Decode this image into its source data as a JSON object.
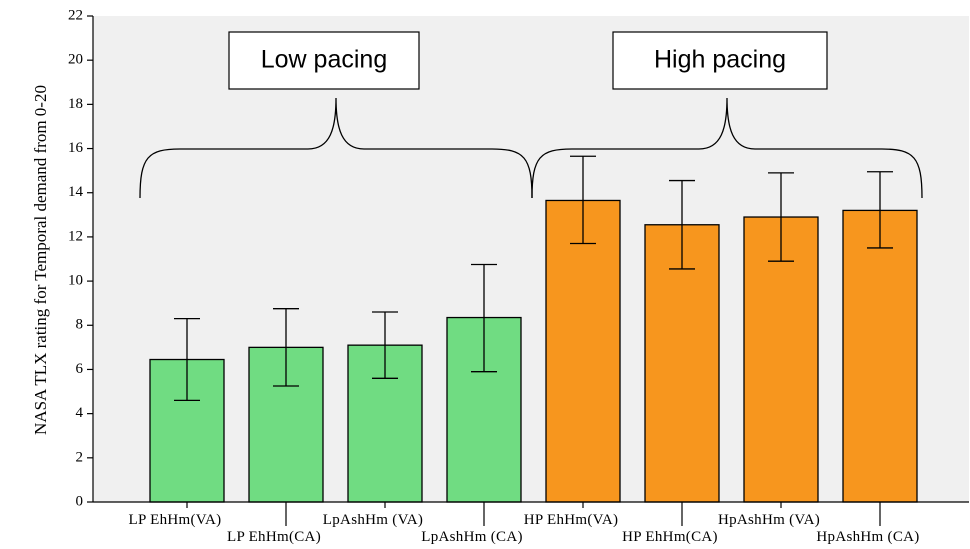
{
  "chart_data": {
    "type": "bar",
    "title": "",
    "xlabel": "",
    "ylabel": "NASA TLX rating for Temporal demand from 0-20",
    "ylim": [
      0,
      22
    ],
    "yticks": [
      0,
      2,
      4,
      6,
      8,
      10,
      12,
      14,
      16,
      18,
      20,
      22
    ],
    "grid": false,
    "legend": "none",
    "categories": [
      "LP EhHm(VA)",
      "LP EhHm(CA)",
      "LpAshHm (VA)",
      "LpAshHm (CA)",
      "HP EhHm(VA)",
      "HP EhHm(CA)",
      "HpAshHm (VA)",
      "HpAshHm (CA)"
    ],
    "values": [
      6.45,
      7.0,
      7.1,
      8.35,
      13.65,
      12.55,
      12.9,
      13.2
    ],
    "error_low": [
      4.6,
      5.25,
      5.6,
      5.9,
      11.7,
      10.55,
      10.9,
      11.5
    ],
    "error_high": [
      8.3,
      8.75,
      8.6,
      10.75,
      15.65,
      14.55,
      14.9,
      14.95
    ],
    "bar_colors": [
      "#70dc82",
      "#70dc82",
      "#70dc82",
      "#70dc82",
      "#f7961e",
      "#f7961e",
      "#f7961e",
      "#f7961e"
    ],
    "plot_background": "#f0f0f0",
    "groups": [
      {
        "label": "Low pacing",
        "first": 0,
        "last": 3
      },
      {
        "label": "High pacing",
        "first": 4,
        "last": 7
      }
    ]
  }
}
